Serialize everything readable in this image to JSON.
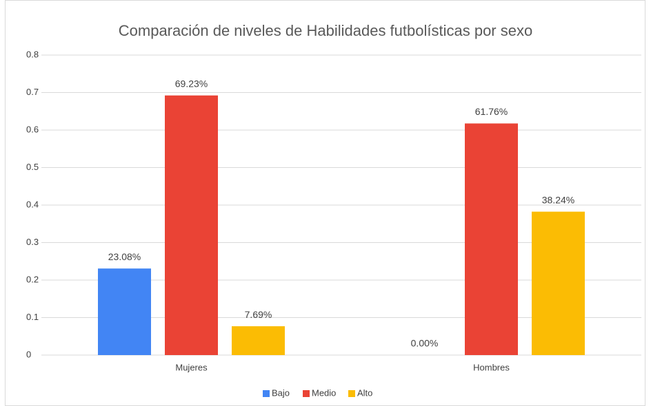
{
  "chart_data": {
    "type": "bar",
    "title": "Comparación de niveles de Habilidades futbolísticas por sexo",
    "categories": [
      "Mujeres",
      "Hombres"
    ],
    "series": [
      {
        "name": "Bajo",
        "color": "#4285f4",
        "values": [
          0.2308,
          0
        ],
        "value_labels": [
          "23.08%",
          "0.00%"
        ]
      },
      {
        "name": "Medio",
        "color": "#ea4335",
        "values": [
          0.6923,
          0.6176
        ],
        "value_labels": [
          "69.23%",
          "61.76%"
        ]
      },
      {
        "name": "Alto",
        "color": "#fbbc04",
        "values": [
          0.0769,
          0.3824
        ],
        "value_labels": [
          "7.69%",
          "38.24%"
        ]
      }
    ],
    "ylim": [
      0,
      0.8
    ],
    "yticks": [
      0,
      0.1,
      0.2,
      0.3,
      0.4,
      0.5,
      0.6,
      0.7,
      0.8
    ],
    "grid": true,
    "legend": "bottom"
  }
}
